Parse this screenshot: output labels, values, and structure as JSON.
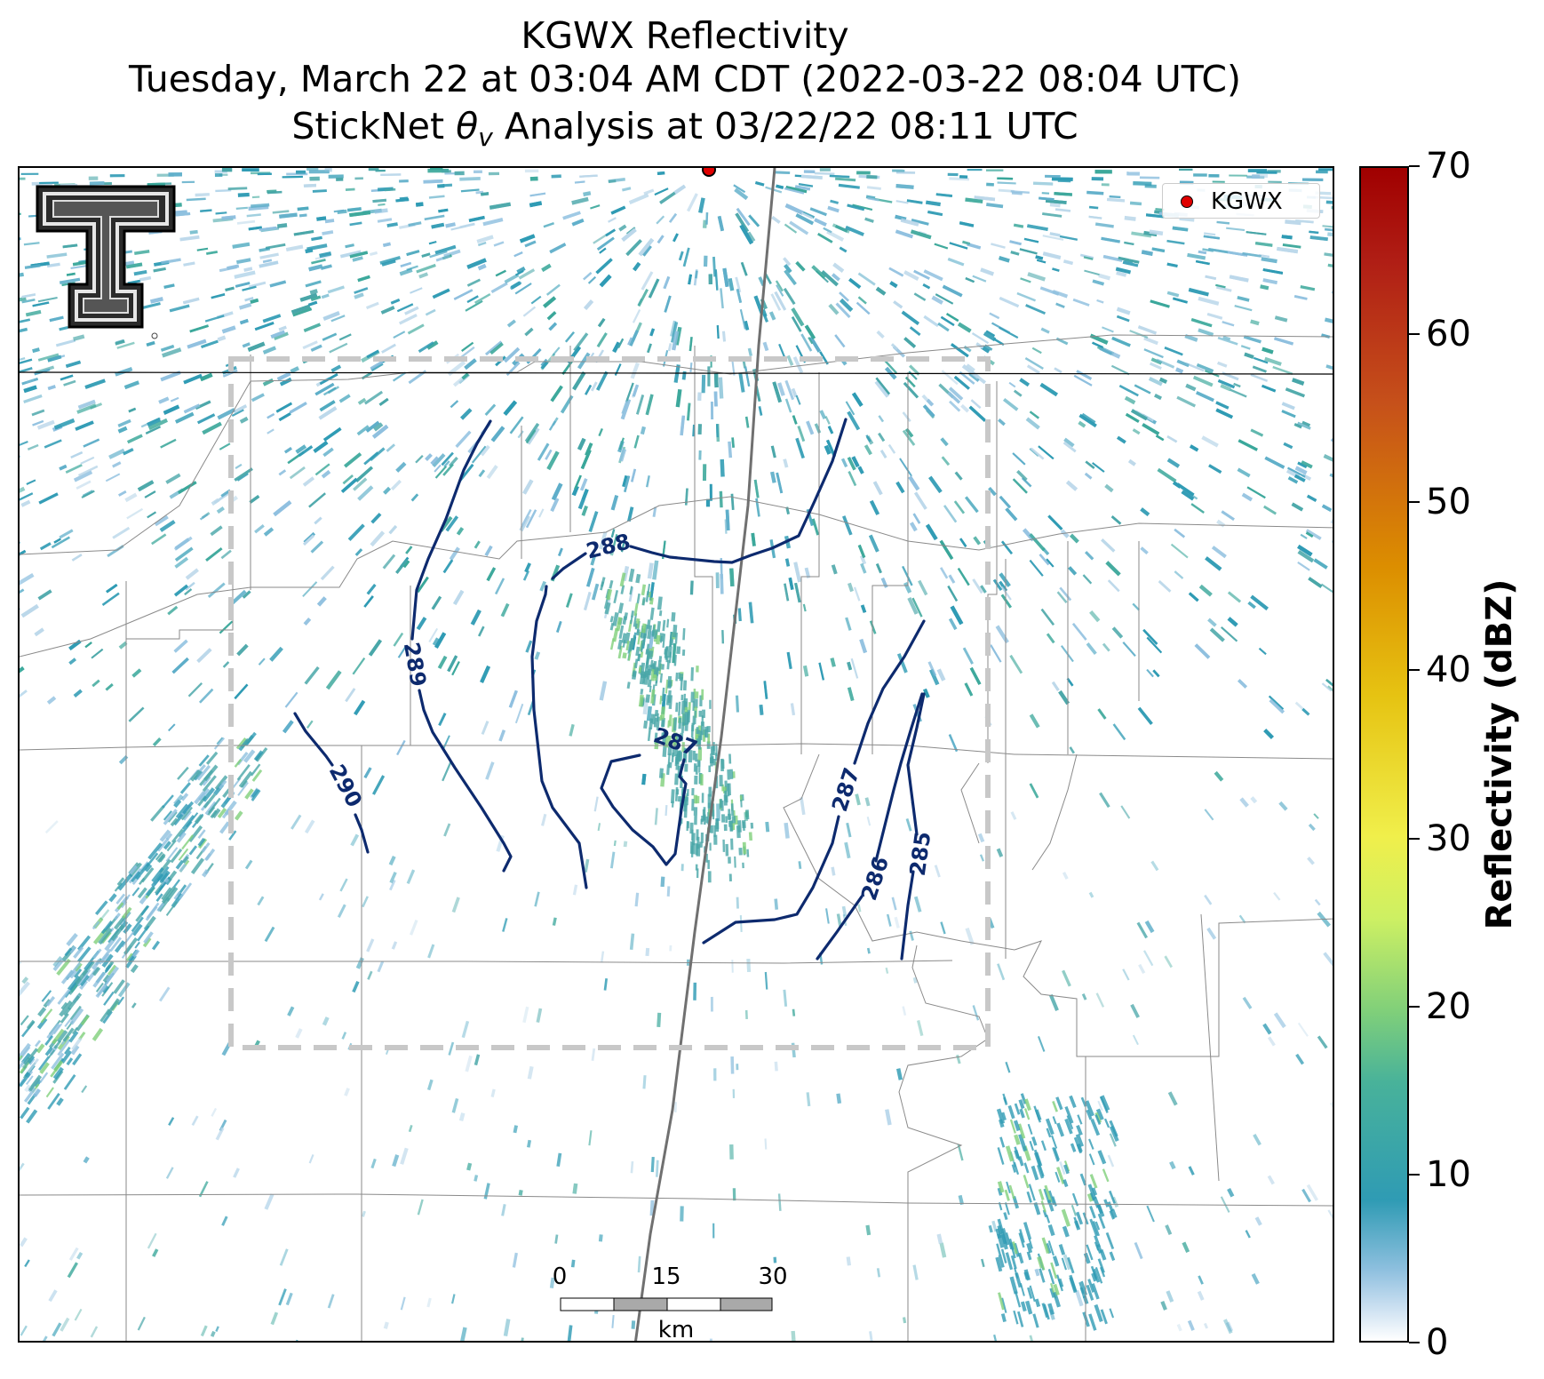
{
  "title": {
    "line1": "KGWX Reflectivity",
    "line2": "Tuesday, March 22 at 03:04 AM CDT (2022-03-22 08:04 UTC)",
    "line3_prefix": "StickNet ",
    "line3_symbol": "θ",
    "line3_subscript": "v",
    "line3_suffix": " Analysis at 03/22/22 08:11 UTC"
  },
  "legend": {
    "marker_label": "KGWX",
    "marker_color": "#e00000"
  },
  "contours": {
    "color": "#0d2a6e",
    "labels": [
      "290",
      "289",
      "288",
      "287",
      "287",
      "286",
      "285"
    ]
  },
  "colorbar": {
    "label": "Reflectivity (dBZ)",
    "ticks": [
      "0",
      "10",
      "20",
      "30",
      "40",
      "50",
      "60",
      "70"
    ],
    "range": [
      0,
      70
    ],
    "colors": [
      "#ffffff",
      "#2f9bb4",
      "#7fcf7a",
      "#f0ef4b",
      "#e6c312",
      "#dc8e00",
      "#c6501a",
      "#a00000"
    ]
  },
  "scale_bar": {
    "ticks": [
      "0",
      "15",
      "30"
    ],
    "unit": "km"
  },
  "analysis_box": {
    "color": "#c8c8c8",
    "style": "dashed"
  },
  "radar_site": {
    "name": "KGWX",
    "color": "#e00000"
  }
}
